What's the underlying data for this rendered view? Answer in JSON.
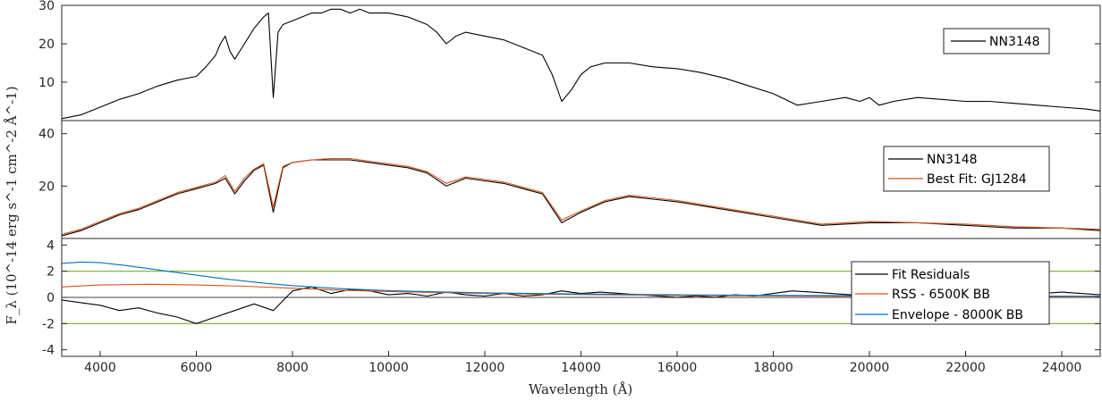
{
  "figure": {
    "xlabel": "Wavelength (Å)",
    "ylabel": "F_λ (10^-14 erg s^-1 cm^-2 Å^-1)"
  },
  "chart_data": [
    {
      "type": "line",
      "panel": "top",
      "xlim": [
        3200,
        24800
      ],
      "ylim": [
        0,
        30
      ],
      "yticks": [
        10,
        20,
        30
      ],
      "grid": false,
      "legend_position": "top-right",
      "series": [
        {
          "name": "NN3148",
          "color": "#000000",
          "x": [
            3200,
            3600,
            4000,
            4400,
            4800,
            5200,
            5600,
            6000,
            6200,
            6400,
            6500,
            6600,
            6700,
            6800,
            7000,
            7200,
            7400,
            7500,
            7600,
            7700,
            7800,
            8000,
            8200,
            8400,
            8600,
            8800,
            9000,
            9200,
            9400,
            9600,
            9800,
            10000,
            10400,
            10800,
            11000,
            11200,
            11400,
            11600,
            12000,
            12400,
            12800,
            13200,
            13400,
            13600,
            13800,
            14000,
            14200,
            14500,
            15000,
            15500,
            16000,
            16500,
            17000,
            17500,
            18000,
            18500,
            19000,
            19500,
            19800,
            20000,
            20200,
            20500,
            21000,
            21500,
            22000,
            22500,
            23000,
            23500,
            24000,
            24500,
            24800
          ],
          "y": [
            0.5,
            1.5,
            3.5,
            5.5,
            7,
            9,
            10.5,
            11.5,
            14,
            17,
            20,
            22,
            18,
            16,
            20,
            24,
            27,
            28,
            6,
            23,
            25,
            26,
            27,
            28,
            28,
            29,
            29,
            28,
            29,
            28,
            28,
            28,
            27,
            25,
            23,
            20,
            22,
            23,
            22,
            21,
            19,
            17,
            12,
            5,
            8,
            12,
            14,
            15,
            15,
            14,
            13.5,
            12.5,
            11,
            9,
            7,
            4,
            5,
            6,
            5,
            6,
            4,
            5,
            6,
            5.5,
            5,
            5,
            4.5,
            4,
            3.5,
            3,
            2.5
          ]
        }
      ]
    },
    {
      "type": "line",
      "panel": "middle",
      "xlim": [
        3200,
        24800
      ],
      "ylim": [
        0,
        45
      ],
      "yticks": [
        20,
        40
      ],
      "grid": false,
      "legend_position": "top-right",
      "series": [
        {
          "name": "NN3148",
          "color": "#000000",
          "x": [
            3200,
            3600,
            4000,
            4400,
            4800,
            5200,
            5600,
            6000,
            6400,
            6600,
            6800,
            7000,
            7200,
            7400,
            7600,
            7800,
            8000,
            8400,
            8800,
            9200,
            9600,
            10000,
            10400,
            10800,
            11200,
            11600,
            12000,
            12400,
            12800,
            13200,
            13600,
            14000,
            14500,
            15000,
            15500,
            16000,
            17000,
            18000,
            19000,
            20000,
            21000,
            22000,
            23000,
            24000,
            24800
          ],
          "y": [
            1,
            3,
            6,
            9,
            11,
            14,
            17,
            19,
            21,
            23,
            17,
            22,
            26,
            28,
            10,
            27,
            29,
            30,
            30,
            30,
            29,
            28,
            27,
            25,
            20,
            23,
            22,
            21,
            19,
            17,
            6,
            10,
            14,
            16,
            15,
            14,
            11,
            8,
            5,
            6,
            6,
            5,
            4,
            4,
            3
          ]
        },
        {
          "name": "Best Fit: GJ1284",
          "color": "#d95319",
          "x": [
            3200,
            3600,
            4000,
            4400,
            4800,
            5200,
            5600,
            6000,
            6400,
            6600,
            6800,
            7000,
            7200,
            7400,
            7600,
            7800,
            8000,
            8400,
            8800,
            9200,
            9600,
            10000,
            10400,
            10800,
            11200,
            11600,
            12000,
            12400,
            12800,
            13200,
            13600,
            14000,
            14500,
            15000,
            15500,
            16000,
            17000,
            18000,
            19000,
            20000,
            21000,
            22000,
            23000,
            24000,
            24800
          ],
          "y": [
            1.5,
            3.5,
            6.5,
            9.5,
            11.5,
            14.5,
            17.5,
            19.5,
            21.5,
            24,
            18,
            23,
            26.5,
            28.5,
            12,
            27.5,
            29,
            30,
            30.5,
            30.5,
            29.5,
            28.5,
            27.5,
            25.5,
            21,
            23.5,
            22.5,
            21.5,
            19.5,
            17.5,
            7,
            10.5,
            14.5,
            16.5,
            15.5,
            14.5,
            11.5,
            8.5,
            5.5,
            6.5,
            6,
            5.5,
            4.5,
            4,
            3.5
          ]
        }
      ]
    },
    {
      "type": "line",
      "panel": "bottom",
      "xlim": [
        3200,
        24800
      ],
      "ylim": [
        -4.5,
        4.5
      ],
      "yticks": [
        -4,
        -2,
        0,
        2,
        4
      ],
      "xticks": [
        4000,
        6000,
        8000,
        10000,
        12000,
        14000,
        16000,
        18000,
        20000,
        22000,
        24000
      ],
      "grid": false,
      "legend_position": "lower-right",
      "reference_lines": [
        2,
        -2
      ],
      "series": [
        {
          "name": "Fit Residuals",
          "color": "#000000",
          "x": [
            3200,
            3600,
            4000,
            4400,
            4800,
            5200,
            5600,
            6000,
            6400,
            6800,
            7200,
            7600,
            8000,
            8400,
            8800,
            9200,
            9600,
            10000,
            10400,
            10800,
            11200,
            11600,
            12000,
            12400,
            12800,
            13200,
            13600,
            14000,
            14400,
            14800,
            15200,
            15600,
            16000,
            16400,
            16800,
            17200,
            17600,
            18000,
            18400,
            18800,
            19200,
            19600,
            20000,
            20400,
            20800,
            21200,
            21600,
            22000,
            22400,
            22800,
            23200,
            23600,
            24000,
            24400,
            24800
          ],
          "y": [
            -0.2,
            -0.4,
            -0.6,
            -1.0,
            -0.8,
            -1.2,
            -1.5,
            -2.0,
            -1.5,
            -1.0,
            -0.5,
            -1.0,
            0.5,
            0.8,
            0.3,
            0.6,
            0.5,
            0.2,
            0.3,
            0.1,
            0.4,
            0.2,
            0.1,
            0.3,
            0.1,
            0.2,
            0.5,
            0.3,
            0.4,
            0.3,
            0.2,
            0.1,
            0.0,
            0.1,
            0.0,
            0.2,
            0.1,
            0.3,
            0.5,
            0.4,
            0.3,
            0.2,
            0.1,
            0.3,
            0.4,
            0.5,
            0.4,
            0.3,
            0.4,
            0.5,
            0.4,
            0.3,
            0.4,
            0.3,
            0.2
          ]
        },
        {
          "name": "RSS - 6500K BB",
          "color": "#d95319",
          "x": [
            3200,
            4000,
            5000,
            6000,
            7000,
            8000,
            9000,
            10000,
            12000,
            14000,
            16000,
            18000,
            20000,
            22000,
            24800
          ],
          "y": [
            0.8,
            0.95,
            1.0,
            0.95,
            0.85,
            0.7,
            0.55,
            0.45,
            0.3,
            0.22,
            0.15,
            0.12,
            0.08,
            0.06,
            0.04
          ]
        },
        {
          "name": "Envelope - 8000K BB",
          "color": "#0072bd",
          "x": [
            3200,
            3600,
            4000,
            4500,
            5000,
            5500,
            6000,
            6500,
            7000,
            7500,
            8000,
            8500,
            9000,
            10000,
            11000,
            12000,
            13000,
            14000,
            16000,
            18000,
            20000,
            22000,
            24800
          ],
          "y": [
            2.6,
            2.7,
            2.65,
            2.45,
            2.2,
            1.95,
            1.7,
            1.45,
            1.25,
            1.05,
            0.9,
            0.78,
            0.67,
            0.52,
            0.42,
            0.35,
            0.3,
            0.26,
            0.2,
            0.16,
            0.13,
            0.11,
            0.09
          ]
        }
      ]
    }
  ]
}
